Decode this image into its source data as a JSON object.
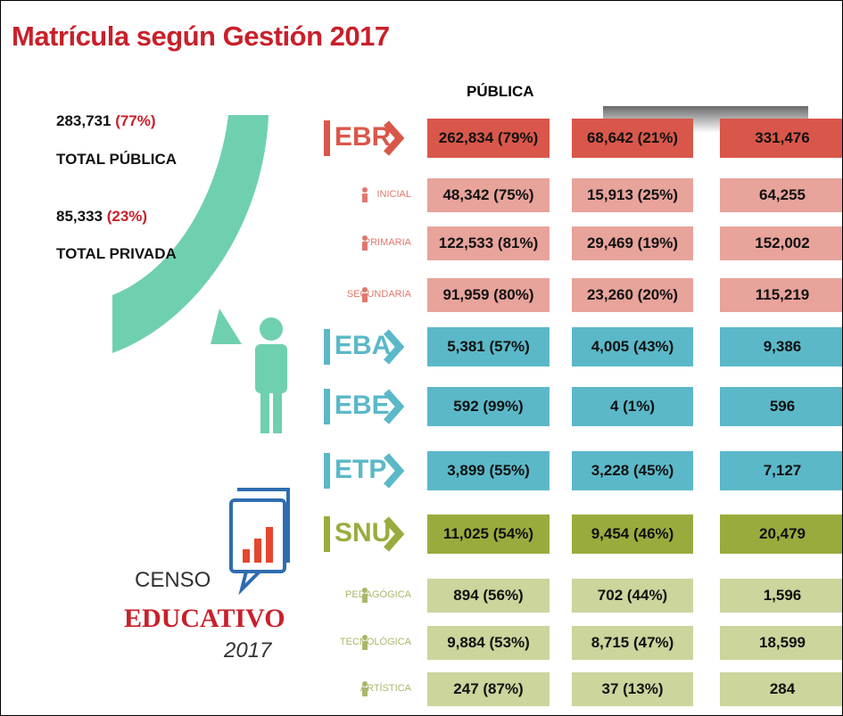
{
  "title": "Matrícula según Gestión 2017",
  "summary": {
    "public_value": "283,731",
    "public_pct": "(77%)",
    "public_label": "TOTAL PÚBLICA",
    "private_value": "85,333",
    "private_pct": "(23%)",
    "private_label": "TOTAL PRIVADA"
  },
  "table": {
    "header": "PÚBLICA",
    "groups": [
      {
        "label": "EBR",
        "cells": [
          "262,834 (79%)",
          "68,642 (21%)",
          "331,476"
        ],
        "rows": [
          {
            "label": "INICIAL",
            "cells": [
              "48,342 (75%)",
              "15,913 (25%)",
              "64,255"
            ]
          },
          {
            "label": "PRIMARIA",
            "cells": [
              "122,533 (81%)",
              "29,469 (19%)",
              "152,002"
            ]
          },
          {
            "label": "SECUNDARIA",
            "cells": [
              "91,959 (80%)",
              "23,260 (20%)",
              "115,219"
            ]
          }
        ]
      },
      {
        "label": "EBA",
        "cells": [
          "5,381 (57%)",
          "4,005 (43%)",
          "9,386"
        ],
        "rows": []
      },
      {
        "label": "EBE",
        "cells": [
          "592 (99%)",
          "4 (1%)",
          "596"
        ],
        "rows": []
      },
      {
        "label": "ETP",
        "cells": [
          "3,899 (55%)",
          "3,228 (45%)",
          "7,127"
        ],
        "rows": []
      },
      {
        "label": "SNU",
        "cells": [
          "11,025 (54%)",
          "9,454 (46%)",
          "20,479"
        ],
        "rows": [
          {
            "label": "PEDAGÓGICA",
            "cells": [
              "894 (56%)",
              "702 (44%)",
              "1,596"
            ]
          },
          {
            "label": "TECNOLÓGICA",
            "cells": [
              "9,884 (53%)",
              "8,715 (47%)",
              "18,599"
            ]
          },
          {
            "label": "ARTÍSTICA",
            "cells": [
              "247 (87%)",
              "37 (13%)",
              "284"
            ]
          }
        ]
      }
    ]
  },
  "logo": {
    "line1": "CENSO",
    "line2": "EDUCATIVO",
    "line3": "2017"
  }
}
